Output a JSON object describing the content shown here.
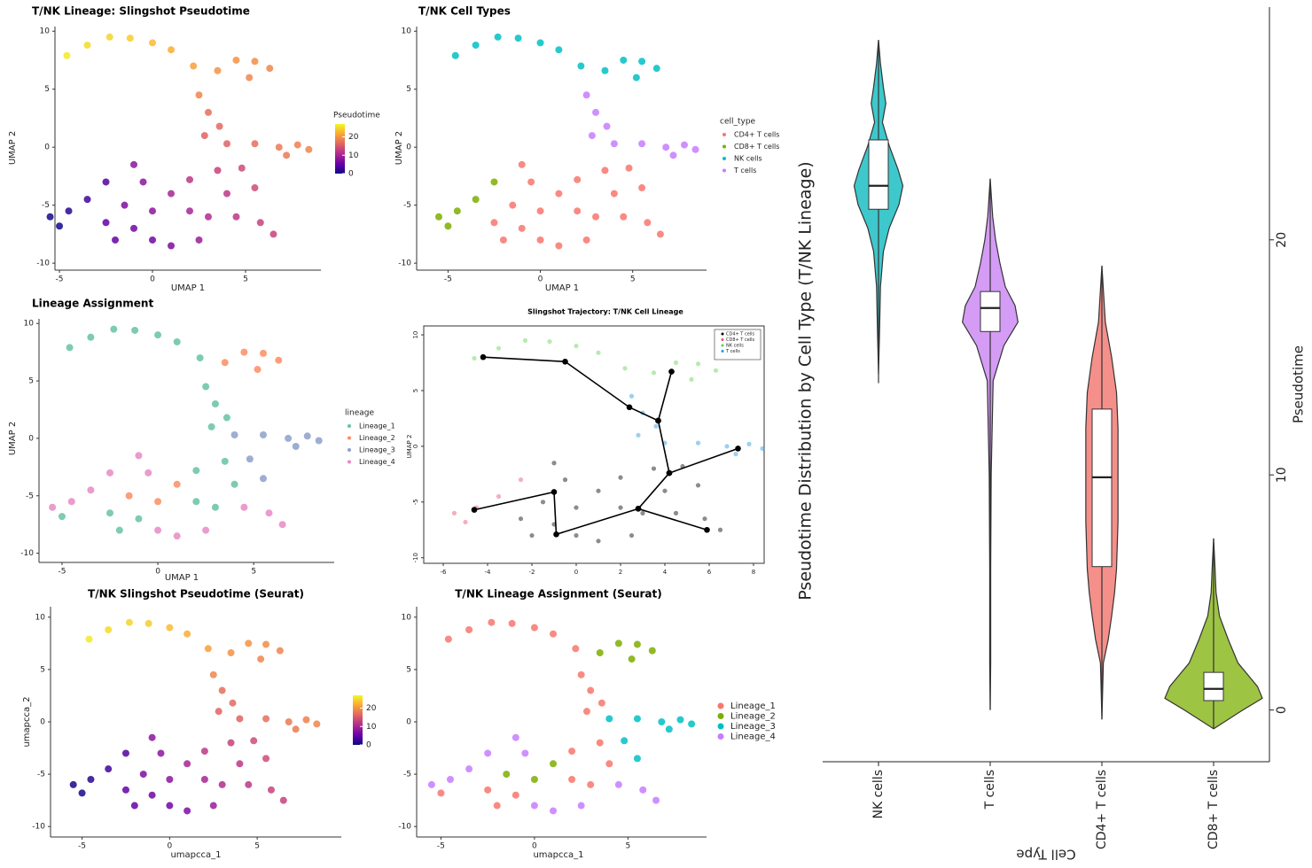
{
  "chart_data": [
    {
      "type": "scatter",
      "title": "T/NK Lineage: Slingshot Pseudotime",
      "xlabel": "UMAP 1",
      "ylabel": "UMAP 2",
      "xlim": [
        -5.24,
        9.05
      ],
      "ylim": [
        -10.6,
        10.4
      ],
      "xticks": [
        -5,
        0,
        5
      ],
      "yticks": [
        -10,
        -5,
        0,
        5,
        10
      ],
      "x": [
        -4.6,
        -3.5,
        -2.3,
        -1.2,
        0,
        1,
        2.2,
        3.5,
        4.5,
        5.5,
        6.3,
        5.2,
        2.5,
        3,
        3.6,
        2.8,
        4,
        5.5,
        6.8,
        7.8,
        8.4,
        7.2,
        4.8,
        3.5,
        2,
        5.5,
        4,
        1,
        -0.5,
        -1.5,
        0,
        2,
        3,
        4.5,
        5.8,
        6.5,
        -1,
        0,
        1,
        -2,
        2.5,
        -2.5,
        -3.5,
        -4.5,
        -5.5,
        -5,
        -2.5,
        -1
      ],
      "y": [
        7.9,
        8.8,
        9.5,
        9.4,
        9,
        8.4,
        7,
        6.6,
        7.5,
        7.4,
        6.8,
        6,
        4.5,
        3,
        1.8,
        1,
        0.3,
        0.3,
        0,
        0.2,
        -0.2,
        -0.7,
        -1.8,
        -2,
        -2.8,
        -3.5,
        -4,
        -4,
        -3,
        -5,
        -5.5,
        -5.5,
        -6,
        -6,
        -6.5,
        -7.5,
        -7,
        -8,
        -8.5,
        -8,
        -8,
        -6.5,
        -4.5,
        -5.5,
        -6,
        -6.8,
        -3,
        -1.5
      ],
      "color_values": [
        26,
        25,
        24.5,
        24,
        23,
        22,
        21,
        20,
        20,
        19.5,
        19,
        19,
        19,
        17,
        16.5,
        16,
        16,
        17,
        18,
        18.5,
        19,
        18,
        14,
        13,
        12,
        14,
        12,
        10,
        8,
        7,
        8,
        10,
        11,
        12,
        13,
        13,
        6,
        6,
        7,
        5,
        9,
        5,
        3,
        1.5,
        0.5,
        0.5,
        4,
        8
      ],
      "colorbar": {
        "title": "Pseudotime",
        "lim": [
          0,
          27
        ],
        "ticks": [
          0,
          10,
          20
        ],
        "colors": [
          "#0d0887",
          "#6a00a8",
          "#b12a90",
          "#e16462",
          "#fca636",
          "#f0f921"
        ]
      }
    },
    {
      "type": "scatter",
      "title": "T/NK Cell Types",
      "xlabel": "UMAP 1",
      "ylabel": "UMAP 2",
      "xlim": [
        -6.7,
        9.0
      ],
      "ylim": [
        -10.6,
        10.4
      ],
      "xticks": [
        -5,
        0,
        5
      ],
      "yticks": [
        -10,
        -5,
        0,
        5,
        10
      ],
      "legend_title": "cell_type",
      "series": [
        {
          "name": "CD4+ T cells",
          "color": "#F8766D",
          "x": [
            4.8,
            3.5,
            2,
            5.5,
            4,
            1,
            -0.5,
            -1.5,
            0,
            2,
            3,
            4.5,
            5.8,
            6.5,
            -1,
            0,
            1,
            -2,
            2.5,
            -2.5,
            -1
          ],
          "y": [
            -1.8,
            -2,
            -2.8,
            -3.5,
            -4,
            -4,
            -3,
            -5,
            -5.5,
            -5.5,
            -6,
            -6,
            -6.5,
            -7.5,
            -7,
            -8,
            -8.5,
            -8,
            -8,
            -6.5,
            -1.5
          ]
        },
        {
          "name": "CD8+ T cells",
          "color": "#7CAE00",
          "x": [
            -3.5,
            -4.5,
            -5.5,
            -5,
            -2.5
          ],
          "y": [
            -4.5,
            -5.5,
            -6,
            -6.8,
            -3
          ]
        },
        {
          "name": "NK cells",
          "color": "#00BFC4",
          "x": [
            -4.6,
            -3.5,
            -2.3,
            -1.2,
            0,
            1,
            2.2,
            3.5,
            4.5,
            5.5,
            6.3,
            5.2
          ],
          "y": [
            7.9,
            8.8,
            9.5,
            9.4,
            9,
            8.4,
            7,
            6.6,
            7.5,
            7.4,
            6.8,
            6
          ]
        },
        {
          "name": "T cells",
          "color": "#C77CFF",
          "x": [
            2.5,
            3,
            3.6,
            2.8,
            4,
            5.5,
            6.8,
            7.8,
            8.4,
            7.2
          ],
          "y": [
            4.5,
            3,
            1.8,
            1,
            0.3,
            0.3,
            0,
            0.2,
            -0.2,
            -0.7
          ]
        }
      ]
    },
    {
      "type": "scatter",
      "title": "Lineage Assignment",
      "xlabel": "UMAP 1",
      "ylabel": "UMAP 2",
      "xlim": [
        -6.2,
        9.2
      ],
      "ylim": [
        -10.8,
        10.4
      ],
      "xticks": [
        -5,
        0,
        5
      ],
      "yticks": [
        -10,
        -5,
        0,
        5,
        10
      ],
      "legend_title": "lineage",
      "series": [
        {
          "name": "Lineage_1",
          "color": "#66c2a5",
          "x": [
            -4.6,
            -3.5,
            -2.3,
            -1.2,
            0,
            1,
            2.2,
            2.5,
            3,
            3.6,
            2.8,
            3.5,
            2,
            4,
            2,
            3,
            -1,
            -2,
            -2.5,
            -5
          ],
          "y": [
            7.9,
            8.8,
            9.5,
            9.4,
            9,
            8.4,
            7,
            4.5,
            3,
            1.8,
            1,
            -2,
            -2.8,
            -4,
            -5.5,
            -6,
            -7,
            -8,
            -6.5,
            -6.8
          ]
        },
        {
          "name": "Lineage_2",
          "color": "#fc8d62",
          "x": [
            3.5,
            4.5,
            5.5,
            6.3,
            5.2,
            1,
            -1.5,
            0
          ],
          "y": [
            6.6,
            7.5,
            7.4,
            6.8,
            6,
            -4,
            -5,
            -5.5
          ]
        },
        {
          "name": "Lineage_3",
          "color": "#8da0cb",
          "x": [
            4,
            5.5,
            6.8,
            7.8,
            8.4,
            7.2,
            4.8,
            5.5
          ],
          "y": [
            0.3,
            0.3,
            0,
            0.2,
            -0.2,
            -0.7,
            -1.8,
            -3.5
          ]
        },
        {
          "name": "Lineage_4",
          "color": "#e78ac3",
          "x": [
            -0.5,
            4.5,
            5.8,
            6.5,
            0,
            1,
            2.5,
            -3.5,
            -4.5,
            -5.5,
            -2.5,
            -1
          ],
          "y": [
            -3,
            -6,
            -6.5,
            -7.5,
            -8,
            -8.5,
            -8,
            -4.5,
            -5.5,
            -6,
            -3,
            -1.5
          ]
        }
      ]
    },
    {
      "type": "scatter",
      "title": "Slingshot Trajectory: T/NK Cell Lineage",
      "ylabel": "UMAP 2",
      "xlim": [
        -6.88,
        8.48
      ],
      "ylim": [
        -10.5,
        10.8
      ],
      "xticks": [
        -6,
        -4,
        -2,
        0,
        2,
        4,
        6,
        8
      ],
      "yticks": [
        -10,
        -5,
        0,
        5,
        10
      ],
      "series": [
        {
          "name": "CD4+ T cells",
          "color": "#000000",
          "x": [
            4.8,
            3.5,
            2,
            5.5,
            4,
            1,
            -0.5,
            -1.5,
            0,
            2,
            3,
            4.5,
            5.8,
            6.5,
            -1,
            0,
            1,
            -2,
            2.5,
            -2.5,
            -1
          ],
          "y": [
            -1.8,
            -2,
            -2.8,
            -3.5,
            -4,
            -4,
            -3,
            -5,
            -5.5,
            -5.5,
            -6,
            -6,
            -6.5,
            -7.5,
            -7,
            -8,
            -8.5,
            -8,
            -8,
            -6.5,
            -1.5
          ]
        },
        {
          "name": "CD8+ T cells",
          "color": "#DF536B",
          "x": [
            -3.5,
            -4.5,
            -5.5,
            -5,
            -2.5
          ],
          "y": [
            -4.5,
            -5.5,
            -6,
            -6.8,
            -3
          ]
        },
        {
          "name": "NK cells",
          "color": "#61D04F",
          "x": [
            -4.6,
            -3.5,
            -2.3,
            -1.2,
            0,
            1,
            2.2,
            3.5,
            4.5,
            5.5,
            6.3,
            5.2
          ],
          "y": [
            7.9,
            8.8,
            9.5,
            9.4,
            9,
            8.4,
            7,
            6.6,
            7.5,
            7.4,
            6.8,
            6
          ]
        },
        {
          "name": "T cells",
          "color": "#2297E6",
          "x": [
            2.5,
            3,
            3.6,
            2.8,
            4,
            5.5,
            6.8,
            7.8,
            8.4,
            7.2
          ],
          "y": [
            4.5,
            3,
            1.8,
            1,
            0.3,
            0.3,
            0,
            0.2,
            -0.2,
            -0.7
          ]
        }
      ],
      "trajectory": [
        {
          "x": [
            -4.2,
            -0.5,
            2.4,
            3.7,
            4.3
          ],
          "y": [
            8.0,
            7.6,
            3.5,
            2.3,
            6.7
          ]
        },
        {
          "x": [
            3.7,
            4.2,
            7.3
          ],
          "y": [
            2.3,
            -2.4,
            -0.2
          ]
        },
        {
          "x": [
            4.2,
            2.8,
            5.9
          ],
          "y": [
            -2.4,
            -5.6,
            -7.5
          ]
        },
        {
          "x": [
            2.8,
            -0.9,
            -1.0,
            -4.6
          ],
          "y": [
            -5.6,
            -7.9,
            -4.1,
            -5.7
          ]
        }
      ]
    },
    {
      "type": "scatter",
      "title": "T/NK Slingshot Pseudotime (Seurat)",
      "xlabel": "umapcca_1",
      "ylabel": "umapcca_2",
      "xlim": [
        -6.8,
        9.8
      ],
      "ylim": [
        -11.0,
        11.0
      ],
      "xticks": [
        -5,
        0,
        5
      ],
      "yticks": [
        -10,
        -5,
        0,
        5,
        10
      ],
      "x": [
        -4.6,
        -3.5,
        -2.3,
        -1.2,
        0,
        1,
        2.2,
        3.5,
        4.5,
        5.5,
        6.3,
        5.2,
        2.5,
        3,
        3.6,
        2.8,
        4,
        5.5,
        6.8,
        7.8,
        8.4,
        7.2,
        4.8,
        3.5,
        2,
        5.5,
        4,
        1,
        -0.5,
        -1.5,
        0,
        2,
        3,
        4.5,
        5.8,
        6.5,
        -1,
        0,
        1,
        -2,
        2.5,
        -2.5,
        -3.5,
        -4.5,
        -5.5,
        -5,
        -2.5,
        -1
      ],
      "y": [
        7.9,
        8.8,
        9.5,
        9.4,
        9,
        8.4,
        7,
        6.6,
        7.5,
        7.4,
        6.8,
        6,
        4.5,
        3,
        1.8,
        1,
        0.3,
        0.3,
        0,
        0.2,
        -0.2,
        -0.7,
        -1.8,
        -2,
        -2.8,
        -3.5,
        -4,
        -4,
        -3,
        -5,
        -5.5,
        -5.5,
        -6,
        -6,
        -6.5,
        -7.5,
        -7,
        -8,
        -8.5,
        -8,
        -8,
        -6.5,
        -4.5,
        -5.5,
        -6,
        -6.8,
        -3,
        -1.5
      ],
      "color_values": [
        26,
        25,
        24.5,
        24,
        23,
        22,
        21,
        20,
        20,
        19.5,
        19,
        19,
        19,
        17,
        16.5,
        16,
        16,
        17,
        18,
        18.5,
        19,
        18,
        14,
        13,
        12,
        14,
        12,
        10,
        8,
        7,
        8,
        10,
        11,
        12,
        13,
        13,
        6,
        6,
        7,
        5,
        9,
        5,
        3,
        1.5,
        0.5,
        0.5,
        4,
        8
      ],
      "colorbar": {
        "lim": [
          0,
          27
        ],
        "ticks": [
          0,
          10,
          20
        ],
        "colors": [
          "#0d0887",
          "#6a00a8",
          "#b12a90",
          "#e16462",
          "#fca636",
          "#f0f921"
        ]
      }
    },
    {
      "type": "scatter",
      "title": "T/NK Lineage Assignment (Seurat)",
      "xlabel": "umapcca_1",
      "xlim": [
        -6.3,
        9.2
      ],
      "ylim": [
        -11.0,
        11.0
      ],
      "xticks": [
        -5,
        0,
        5
      ],
      "yticks": [
        -10,
        -5,
        0,
        5,
        10
      ],
      "series": [
        {
          "name": "Lineage_1",
          "color": "#F8766D",
          "x": [
            -4.6,
            -3.5,
            -2.3,
            -1.2,
            0,
            1,
            2.2,
            2.5,
            3,
            3.6,
            2.8,
            3.5,
            2,
            4,
            2,
            3,
            -1,
            -2,
            -2.5,
            -5
          ],
          "y": [
            7.9,
            8.8,
            9.5,
            9.4,
            9,
            8.4,
            7,
            4.5,
            3,
            1.8,
            1,
            -2,
            -2.8,
            -4,
            -5.5,
            -6,
            -7,
            -8,
            -6.5,
            -6.8
          ]
        },
        {
          "name": "Lineage_2",
          "color": "#7CAE00",
          "x": [
            3.5,
            4.5,
            5.5,
            6.3,
            5.2,
            1,
            -1.5,
            0
          ],
          "y": [
            6.6,
            7.5,
            7.4,
            6.8,
            6,
            -4,
            -5,
            -5.5
          ]
        },
        {
          "name": "Lineage_3",
          "color": "#00BFC4",
          "x": [
            4,
            5.5,
            6.8,
            7.8,
            8.4,
            7.2,
            4.8,
            5.5
          ],
          "y": [
            0.3,
            0.3,
            0,
            0.2,
            -0.2,
            -0.7,
            -1.8,
            -3.5
          ]
        },
        {
          "name": "Lineage_4",
          "color": "#C77CFF",
          "x": [
            -0.5,
            4.5,
            5.8,
            6.5,
            0,
            1,
            2.5,
            -3.5,
            -4.5,
            -5.5,
            -2.5,
            -1
          ],
          "y": [
            -3,
            -6,
            -6.5,
            -7.5,
            -8,
            -8.5,
            -8,
            -4.5,
            -5.5,
            -6,
            -3,
            -1.5
          ]
        }
      ]
    },
    {
      "type": "violin",
      "title": "Pseudotime Distribution by Cell Type (T/NK Lineage)",
      "xlabel": "Cell Type",
      "ylabel": "Pseudotime",
      "categories": [
        "NK cells",
        "T cells",
        "CD4+ T cells",
        "CD8+ T cells"
      ],
      "colors": [
        "#3ec8cc",
        "#d49cf5",
        "#f58f8a",
        "#9dc443"
      ],
      "ylim": [
        -2.2,
        29.9
      ],
      "yticks": [
        0,
        10,
        20
      ],
      "box": {
        "min": [
          13.9,
          0,
          -0.4,
          -0.8
        ],
        "q1": [
          21.3,
          16.1,
          6.1,
          0.4
        ],
        "median": [
          22.3,
          17.1,
          9.9,
          0.9
        ],
        "q3": [
          24.25,
          17.8,
          12.8,
          1.6
        ],
        "max": [
          28.5,
          22.6,
          18.9,
          7.3
        ]
      },
      "density_y": [
        [
          14.3,
          16,
          18,
          19.5,
          20.5,
          21.5,
          22.3,
          23,
          24,
          25,
          25.8,
          26.5,
          27.5,
          28.5
        ],
        [
          0,
          2,
          6,
          10,
          14,
          15.5,
          16.5,
          17.2,
          18,
          19,
          20,
          21,
          22.6
        ],
        [
          -0.4,
          2,
          3,
          4,
          5,
          6,
          8,
          10,
          12,
          13.5,
          15,
          16.5,
          18.9
        ],
        [
          -0.8,
          0,
          0.5,
          1,
          1.5,
          2,
          3,
          4,
          5,
          6,
          7.3
        ]
      ],
      "density": [
        [
          0,
          0.02,
          0.04,
          0.1,
          0.22,
          0.42,
          0.5,
          0.4,
          0.22,
          0.08,
          0.15,
          0.1,
          0.04,
          0
        ],
        [
          0,
          0.01,
          0.01,
          0.02,
          0.06,
          0.28,
          0.57,
          0.51,
          0.31,
          0.2,
          0.11,
          0.05,
          0
        ],
        [
          0,
          0.03,
          0.13,
          0.2,
          0.26,
          0.3,
          0.33,
          0.33,
          0.33,
          0.3,
          0.2,
          0.07,
          0
        ],
        [
          0,
          0.6,
          1,
          0.9,
          0.7,
          0.5,
          0.3,
          0.12,
          0.05,
          0.03,
          0
        ]
      ]
    }
  ]
}
